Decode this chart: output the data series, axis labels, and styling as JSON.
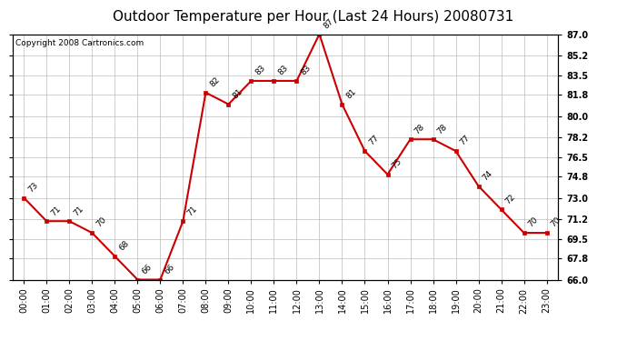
{
  "title": "Outdoor Temperature per Hour (Last 24 Hours) 20080731",
  "copyright": "Copyright 2008 Cartronics.com",
  "hours": [
    "00:00",
    "01:00",
    "02:00",
    "03:00",
    "04:00",
    "05:00",
    "06:00",
    "07:00",
    "08:00",
    "09:00",
    "10:00",
    "11:00",
    "12:00",
    "13:00",
    "14:00",
    "15:00",
    "16:00",
    "17:00",
    "18:00",
    "19:00",
    "20:00",
    "21:00",
    "22:00",
    "23:00"
  ],
  "temps": [
    73,
    71,
    71,
    70,
    68,
    66,
    66,
    71,
    82,
    81,
    83,
    83,
    83,
    87,
    81,
    77,
    75,
    78,
    78,
    77,
    74,
    72,
    70,
    70
  ],
  "ylim": [
    66.0,
    87.0
  ],
  "yticks": [
    66.0,
    67.8,
    69.5,
    71.2,
    73.0,
    74.8,
    76.5,
    78.2,
    80.0,
    81.8,
    83.5,
    85.2,
    87.0
  ],
  "line_color": "#cc0000",
  "marker_color": "#cc0000",
  "bg_color": "#ffffff",
  "grid_color": "#bbbbbb",
  "title_fontsize": 11,
  "copyright_fontsize": 6.5,
  "label_fontsize": 6.5,
  "tick_fontsize": 7
}
